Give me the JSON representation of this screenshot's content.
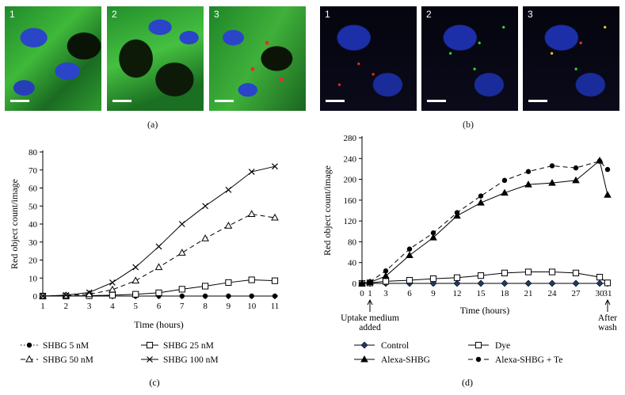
{
  "panels": {
    "a": {
      "caption": "(a)",
      "tiles": [
        {
          "label": "1"
        },
        {
          "label": "2"
        },
        {
          "label": "3"
        }
      ]
    },
    "b": {
      "caption": "(b)",
      "tiles": [
        {
          "label": "1"
        },
        {
          "label": "2"
        },
        {
          "label": "3"
        }
      ]
    }
  },
  "chart_data": [
    {
      "id": "c",
      "caption": "(c)",
      "type": "line",
      "xlabel": "Time (hours)",
      "ylabel": "Red object count/image",
      "xlim": [
        1,
        11
      ],
      "ylim": [
        0,
        80
      ],
      "x_ticks": [
        "1",
        "2",
        "3",
        "4",
        "5",
        "6",
        "7",
        "8",
        "9",
        "10",
        "11"
      ],
      "y_ticks": [
        "0",
        "10",
        "20",
        "30",
        "40",
        "50",
        "60",
        "70",
        "80"
      ],
      "x": [
        1,
        2,
        3,
        4,
        5,
        6,
        7,
        8,
        9,
        10,
        11
      ],
      "series": [
        {
          "name": "SHBG 5 nM",
          "marker": "filled-circle",
          "line": "dotted",
          "values": [
            0,
            0,
            0,
            0,
            0,
            0,
            0,
            0,
            0,
            0,
            0
          ]
        },
        {
          "name": "SHBG 25 nM",
          "marker": "open-square",
          "line": "solid",
          "values": [
            0,
            0,
            0.2,
            0.5,
            1,
            1.8,
            3.8,
            5.5,
            7.5,
            9,
            8.5
          ]
        },
        {
          "name": "SHBG 50 nM",
          "marker": "open-triangle",
          "line": "dashed",
          "values": [
            0,
            0.3,
            1,
            3.5,
            8.5,
            16,
            24,
            32,
            39,
            45.5,
            43.5
          ]
        },
        {
          "name": "SHBG 100 nM",
          "marker": "cross",
          "line": "solid",
          "values": [
            0,
            0.5,
            2,
            7.5,
            16,
            27.5,
            40,
            50,
            59,
            69,
            72
          ]
        }
      ],
      "legend_placement": "bottom"
    },
    {
      "id": "d",
      "caption": "(d)",
      "type": "line",
      "xlabel": "Time (hours)",
      "ylabel": "Red object count/image",
      "xlim": [
        0,
        31
      ],
      "ylim": [
        0,
        280
      ],
      "x_ticks": [
        "0",
        "1",
        "3",
        "6",
        "9",
        "12",
        "15",
        "18",
        "21",
        "24",
        "27",
        "30",
        "31"
      ],
      "y_ticks": [
        "0",
        "40",
        "80",
        "120",
        "160",
        "200",
        "240",
        "280"
      ],
      "x": [
        0,
        1,
        3,
        6,
        9,
        12,
        15,
        18,
        21,
        24,
        27,
        30,
        31
      ],
      "annotations": [
        {
          "label_line1": "Uptake medium",
          "label_line2": "added",
          "at_x": 1
        },
        {
          "label_line1": "After",
          "label_line2": "wash",
          "at_x": 31
        }
      ],
      "series": [
        {
          "name": "Control",
          "marker": "filled-diamond",
          "line": "solid",
          "values": [
            0,
            0,
            0,
            0,
            0,
            0,
            0,
            0,
            0,
            0,
            0,
            0,
            0
          ]
        },
        {
          "name": "Dye",
          "marker": "open-square",
          "line": "solid",
          "values": [
            0,
            1,
            4,
            6,
            9,
            11,
            15,
            20,
            22,
            22,
            20,
            12,
            1
          ]
        },
        {
          "name": "Alexa-SHBG",
          "marker": "filled-triangle",
          "line": "solid",
          "values": [
            0,
            2,
            14,
            54,
            88,
            130,
            155,
            174,
            190,
            193,
            198,
            236,
            170
          ]
        },
        {
          "name": "Alexa-SHBG + Te",
          "marker": "filled-circle",
          "line": "dashed",
          "values": [
            0,
            3,
            24,
            66,
            97,
            136,
            168,
            198,
            215,
            226,
            222,
            235,
            219
          ]
        }
      ],
      "legend_placement": "bottom"
    }
  ]
}
